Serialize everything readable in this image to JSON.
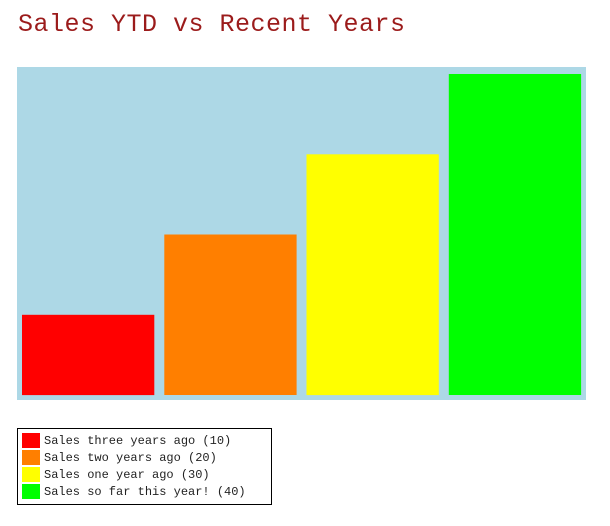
{
  "chart_data": {
    "type": "bar",
    "title": "Sales YTD vs Recent Years",
    "categories": [
      "Sales three years ago",
      "Sales two years ago",
      "Sales one year ago",
      "Sales so far this year!"
    ],
    "values": [
      10,
      20,
      30,
      40
    ],
    "colors": [
      "#ff0000",
      "#ff7f00",
      "#ffff00",
      "#00ff00"
    ],
    "background": "#add8e6",
    "ylim": [
      0,
      40
    ],
    "grid": false,
    "legend_position": "bottom-left",
    "legend": [
      "Sales three years ago (10)",
      "Sales two years ago (20)",
      "Sales one year ago (30)",
      "Sales so far this year! (40)"
    ]
  }
}
